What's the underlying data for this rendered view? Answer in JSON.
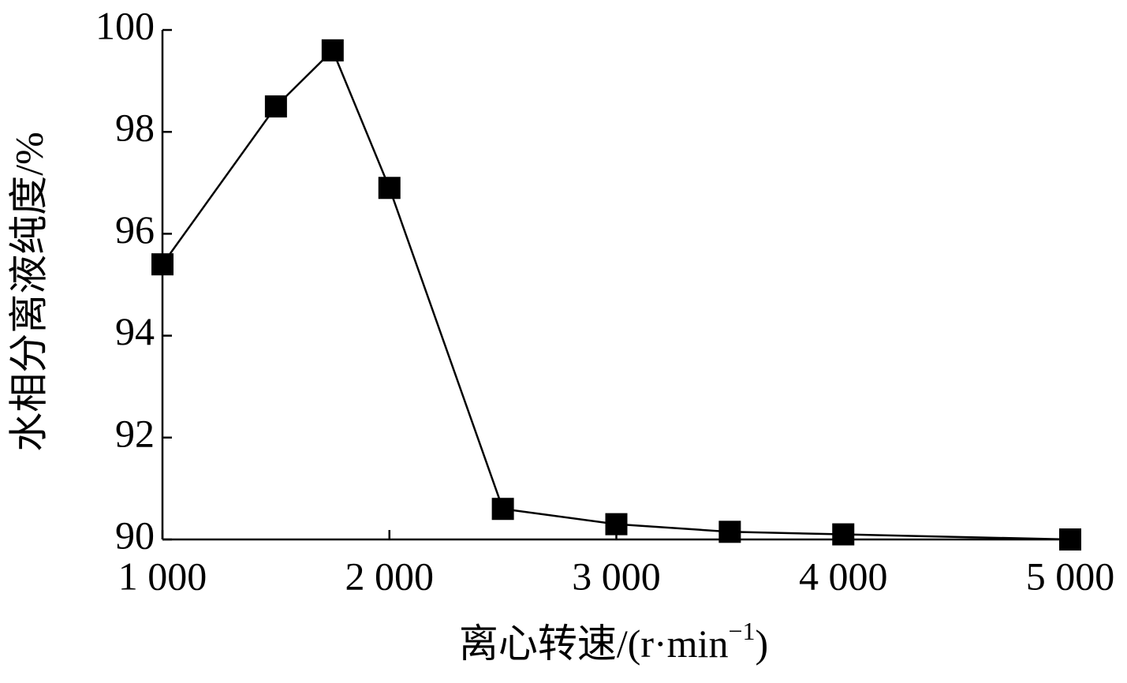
{
  "chart_data": {
    "type": "line",
    "x_label": {
      "text": "离心转速/(r·min",
      "sup": "−1",
      "close": ")"
    },
    "y_label": "水相分离液纯度/%",
    "x": [
      1000,
      1500,
      1750,
      2000,
      2500,
      3000,
      3500,
      4000,
      5000
    ],
    "series": [
      {
        "color": "#000000",
        "values": [
          95.4,
          98.5,
          99.6,
          96.9,
          90.6,
          90.3,
          90.15,
          90.1,
          90.0
        ]
      }
    ],
    "xlim": [
      1000,
      5000
    ],
    "xticks": [
      {
        "value": 1000,
        "label": "1 000"
      },
      {
        "value": 2000,
        "label": "2 000"
      },
      {
        "value": 3000,
        "label": "3 000"
      },
      {
        "value": 4000,
        "label": "4 000"
      },
      {
        "value": 5000,
        "label": "5 000"
      }
    ],
    "ylim": [
      90,
      100
    ],
    "yticks": [
      90,
      92,
      94,
      96,
      98,
      100
    ],
    "grid": false
  }
}
